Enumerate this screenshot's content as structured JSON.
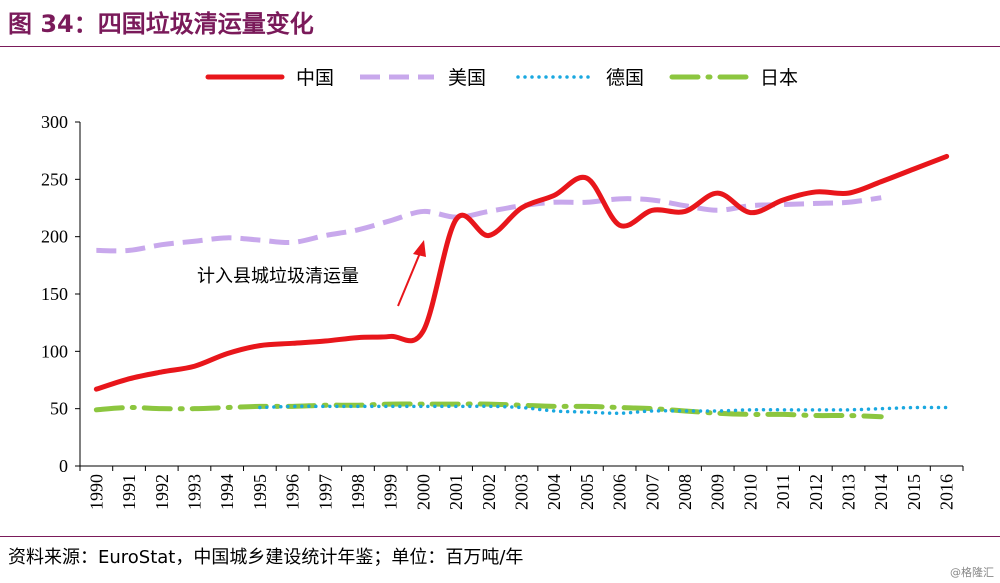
{
  "header": {
    "title": "图 34：四国垃圾清运量变化"
  },
  "footer": {
    "source": "资料来源：EuroStat，中国城乡建设统计年鉴；单位：百万吨/年",
    "watermark": "@格隆汇"
  },
  "colors": {
    "china": "#e8161b",
    "usa": "#c8a8ec",
    "germany": "#1aa8e0",
    "japan": "#8cc63f",
    "brand": "#7a1a5a"
  },
  "chart_data": {
    "type": "line",
    "title": "",
    "xlabel": "",
    "ylabel": "",
    "ylim": [
      0,
      300
    ],
    "yticks": [
      0,
      50,
      100,
      150,
      200,
      250,
      300
    ],
    "x": [
      "1990",
      "1991",
      "1992",
      "1993",
      "1994",
      "1995",
      "1996",
      "1997",
      "1998",
      "1999",
      "2000",
      "2001",
      "2002",
      "2003",
      "2004",
      "2005",
      "2006",
      "2007",
      "2008",
      "2009",
      "2010",
      "2011",
      "2012",
      "2013",
      "2014",
      "2015",
      "2016"
    ],
    "legend_position": "top",
    "grid": false,
    "series": [
      {
        "name": "中国",
        "style": "solid",
        "values": [
          67,
          76,
          82,
          87,
          98,
          105,
          107,
          109,
          112,
          113,
          118,
          215,
          201,
          225,
          236,
          251,
          210,
          223,
          222,
          238,
          221,
          232,
          239,
          238,
          248,
          259,
          270
        ]
      },
      {
        "name": "美国",
        "style": "dashed",
        "values": [
          188,
          188,
          193,
          196,
          199,
          197,
          195,
          201,
          206,
          214,
          222,
          217,
          222,
          227,
          230,
          230,
          233,
          232,
          227,
          223,
          227,
          228,
          229,
          230,
          234,
          null,
          null
        ]
      },
      {
        "name": "德国",
        "style": "dotted",
        "values": [
          null,
          null,
          null,
          null,
          null,
          51,
          52,
          52,
          52,
          52,
          52,
          52,
          52,
          51,
          48,
          47,
          46,
          48,
          48,
          48,
          49,
          49,
          49,
          49,
          50,
          51,
          51
        ]
      },
      {
        "name": "日本",
        "style": "dashdot",
        "values": [
          49,
          51,
          50,
          50,
          51,
          52,
          52,
          53,
          53,
          54,
          54,
          54,
          54,
          53,
          52,
          52,
          51,
          50,
          48,
          46,
          45,
          45,
          44,
          44,
          43,
          null,
          null
        ]
      }
    ],
    "annotations": [
      {
        "text": "计入县城垃圾清运量"
      }
    ]
  }
}
